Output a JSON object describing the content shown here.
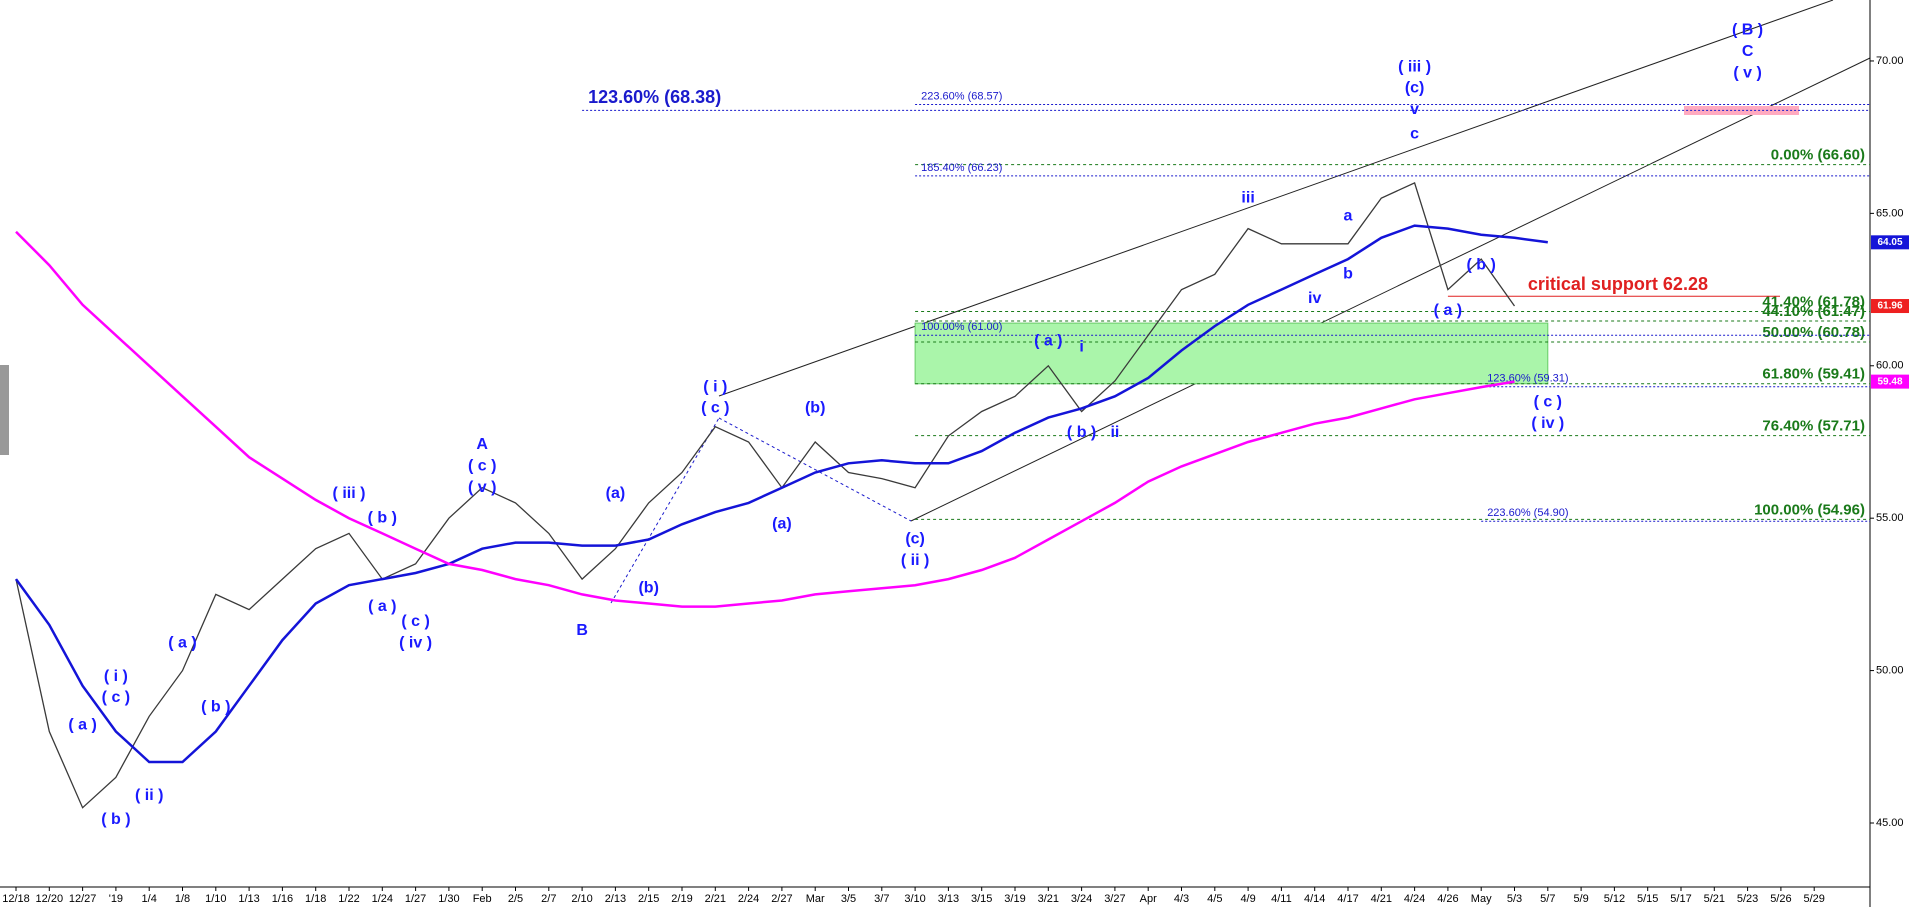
{
  "chart_data": {
    "type": "line",
    "x": [
      "12/18",
      "12/20",
      "12/27",
      "'19",
      "1/4",
      "1/8",
      "1/10",
      "1/13",
      "1/16",
      "1/18",
      "1/22",
      "1/24",
      "1/27",
      "1/30",
      "Feb",
      "2/5",
      "2/7",
      "2/10",
      "2/13",
      "2/15",
      "2/19",
      "2/21",
      "2/24",
      "2/27",
      "Mar",
      "3/5",
      "3/7",
      "3/10",
      "3/13",
      "3/15",
      "3/19",
      "3/21",
      "3/24",
      "3/27",
      "Apr",
      "4/3",
      "4/5",
      "4/9",
      "4/11",
      "4/14",
      "4/17",
      "4/21",
      "4/24",
      "4/26",
      "May",
      "5/3",
      "5/7",
      "5/9",
      "5/12",
      "5/15",
      "5/17",
      "5/21",
      "5/23",
      "5/26",
      "5/29"
    ],
    "series": [
      {
        "color": "#3a3a3a",
        "values": [
          53,
          48,
          45.5,
          46.5,
          48.5,
          50,
          52.5,
          52,
          53,
          54,
          54.5,
          53,
          53.5,
          55,
          56,
          55.5,
          54.5,
          53,
          54,
          55.5,
          56.5,
          58,
          57.5,
          56,
          57.5,
          56.5,
          56.3,
          56,
          57.7,
          58.5,
          59,
          60,
          58.5,
          59.5,
          61,
          62.5,
          63,
          64.5,
          64,
          64,
          64,
          65.5,
          66,
          62.5,
          63.5,
          61.96,
          null,
          null,
          null,
          null,
          null,
          null,
          null,
          null,
          null
        ]
      },
      {
        "color": "#1414d8",
        "values": [
          53,
          51.5,
          49.5,
          48,
          47,
          47,
          48,
          49.5,
          51,
          52.2,
          52.8,
          53,
          53.2,
          53.5,
          54,
          54.2,
          54.2,
          54.1,
          54.1,
          54.3,
          54.8,
          55.2,
          55.5,
          56,
          56.5,
          56.8,
          56.9,
          56.8,
          56.8,
          57.2,
          57.8,
          58.3,
          58.6,
          59,
          59.6,
          60.5,
          61.3,
          62,
          62.5,
          63,
          63.5,
          64.2,
          64.6,
          64.5,
          64.3,
          64.2,
          64.05,
          null,
          null,
          null,
          null,
          null,
          null,
          null,
          null
        ]
      },
      {
        "color": "#ff00ff",
        "values": [
          64.4,
          63.3,
          62,
          61,
          60,
          59,
          58,
          57,
          56.3,
          55.6,
          55,
          54.5,
          54,
          53.5,
          53.3,
          53,
          52.8,
          52.5,
          52.3,
          52.2,
          52.1,
          52.1,
          52.2,
          52.3,
          52.5,
          52.6,
          52.7,
          52.8,
          53,
          53.3,
          53.7,
          54.3,
          54.9,
          55.5,
          56.2,
          56.7,
          57.1,
          57.5,
          57.8,
          58.1,
          58.3,
          58.6,
          58.9,
          59.1,
          59.3,
          59.48,
          null,
          null,
          null,
          null,
          null,
          null,
          null,
          null,
          null
        ]
      }
    ],
    "ylim": [
      42.9,
      72
    ],
    "yticks": [
      {
        "value": 45,
        "label": "45.00"
      },
      {
        "value": 50,
        "label": "50.00"
      },
      {
        "value": 55,
        "label": "55.00"
      },
      {
        "value": 60,
        "label": "60.00"
      },
      {
        "value": 65,
        "label": "65.00"
      },
      {
        "value": 70,
        "label": "70.00"
      }
    ],
    "price_tags": [
      {
        "value": 64.05,
        "color": "#1414d8"
      },
      {
        "value": 61.96,
        "color": "#ee2020"
      },
      {
        "value": 59.48,
        "color": "#ff00ff"
      }
    ],
    "zone": {
      "values": [
        59.41,
        61.4
      ],
      "start": "3/10",
      "end": "5/7",
      "color": "#aaf5aa"
    },
    "fib_extensions": [
      {
        "label": "123.60% (68.38)",
        "value": 68.38,
        "start": "2/10",
        "bold": true
      },
      {
        "label": "223.60% (68.57)",
        "value": 68.57,
        "start": "3/10",
        "bold": false
      },
      {
        "label": "185.40% (66.23)",
        "value": 66.23,
        "start": "3/10",
        "bold": false
      },
      {
        "label": "100.00% (61.00)",
        "value": 61.0,
        "start": "3/10",
        "bold": false
      },
      {
        "label": "123.60% (59.31)",
        "value": 59.31,
        "start": "May",
        "bold": false
      },
      {
        "label": "223.60% (54.90)",
        "value": 54.9,
        "start": "May",
        "bold": false
      }
    ],
    "fib_extension_color": "#1a1acc",
    "fib_retracements": [
      {
        "label": "0.00% (66.60)",
        "value": 66.6
      },
      {
        "label": "41.40% (61.78)",
        "value": 61.78
      },
      {
        "label": "44.10% (61.47)",
        "value": 61.47
      },
      {
        "label": "50.00% (60.78)",
        "value": 60.78
      },
      {
        "label": "61.80% (59.41)",
        "value": 59.41
      },
      {
        "label": "76.40% (57.71)",
        "value": 57.71
      },
      {
        "label": "100.00% (54.96)",
        "value": 54.96
      }
    ],
    "fib_retracement_color": "#1a7a1a",
    "support": {
      "label": "critical support 62.28",
      "value": 62.28,
      "start": "4/26",
      "color": "#e02020"
    },
    "annotation_color": "#1a1aff",
    "annotations": [
      {
        "text": "( a )",
        "x": "12/27",
        "y": 48.2
      },
      {
        "text": "( b )",
        "x": "'19",
        "y": 45.1
      },
      {
        "text": "( i )",
        "x": "'19",
        "y": 49.8
      },
      {
        "text": "( c )",
        "x": "'19",
        "y": 49.1
      },
      {
        "text": "( ii )",
        "x": "1/4",
        "y": 45.9
      },
      {
        "text": "( a )",
        "x": "1/8",
        "y": 50.9
      },
      {
        "text": "( b )",
        "x": "1/10",
        "y": 48.8
      },
      {
        "text": "( iii )",
        "x": "1/22",
        "y": 55.8
      },
      {
        "text": "( b )",
        "x": "1/24",
        "y": 55.0
      },
      {
        "text": "( a )",
        "x": "1/24",
        "y": 52.1
      },
      {
        "text": "( c )",
        "x": "1/27",
        "y": 51.6
      },
      {
        "text": "( iv )",
        "x": "1/27",
        "y": 50.9
      },
      {
        "text": "A",
        "x": "Feb",
        "y": 57.4
      },
      {
        "text": "( c )",
        "x": "Feb",
        "y": 56.7
      },
      {
        "text": "( v )",
        "x": "Feb",
        "y": 56.0
      },
      {
        "text": "B",
        "x": "2/10",
        "y": 51.3
      },
      {
        "text": "(a)",
        "x": "2/13",
        "y": 55.8
      },
      {
        "text": "(b)",
        "x": "2/15",
        "y": 52.7
      },
      {
        "text": "( i )",
        "x": "2/21",
        "y": 59.3
      },
      {
        "text": "( c )",
        "x": "2/21",
        "y": 58.6
      },
      {
        "text": "(a)",
        "x": "2/27",
        "y": 54.8
      },
      {
        "text": "(b)",
        "x": "Mar",
        "y": 58.6
      },
      {
        "text": "(c)",
        "x": "3/10",
        "y": 54.3
      },
      {
        "text": "( ii )",
        "x": "3/10",
        "y": 53.6
      },
      {
        "text": "( a )",
        "x": "3/21",
        "y": 60.8
      },
      {
        "text": "i",
        "x": "3/24",
        "y": 60.6
      },
      {
        "text": "( b )",
        "x": "3/24",
        "y": 57.8
      },
      {
        "text": "ii",
        "x": "3/27",
        "y": 57.8
      },
      {
        "text": "iii",
        "x": "4/9",
        "y": 65.5
      },
      {
        "text": "a",
        "x": "4/17",
        "y": 64.9
      },
      {
        "text": "b",
        "x": "4/17",
        "y": 63.0
      },
      {
        "text": "iv",
        "x": "4/14",
        "y": 62.2
      },
      {
        "text": "( iii )",
        "x": "4/24",
        "y": 69.8
      },
      {
        "text": "(c)",
        "x": "4/24",
        "y": 69.1
      },
      {
        "text": "v",
        "x": "4/24",
        "y": 68.4
      },
      {
        "text": "c",
        "x": "4/24",
        "y": 67.6
      },
      {
        "text": "( b )",
        "x": "May",
        "y": 63.3
      },
      {
        "text": "( a )",
        "x": "4/26",
        "y": 61.8
      },
      {
        "text": "( c )",
        "x": "5/7",
        "y": 58.8
      },
      {
        "text": "( iv )",
        "x": "5/7",
        "y": 58.1
      },
      {
        "text": "( B )",
        "x": "5/23",
        "y": 71.0
      },
      {
        "text": "C",
        "x": "5/23",
        "y": 70.3
      },
      {
        "text": "( v )",
        "x": "5/23",
        "y": 69.6
      }
    ]
  }
}
